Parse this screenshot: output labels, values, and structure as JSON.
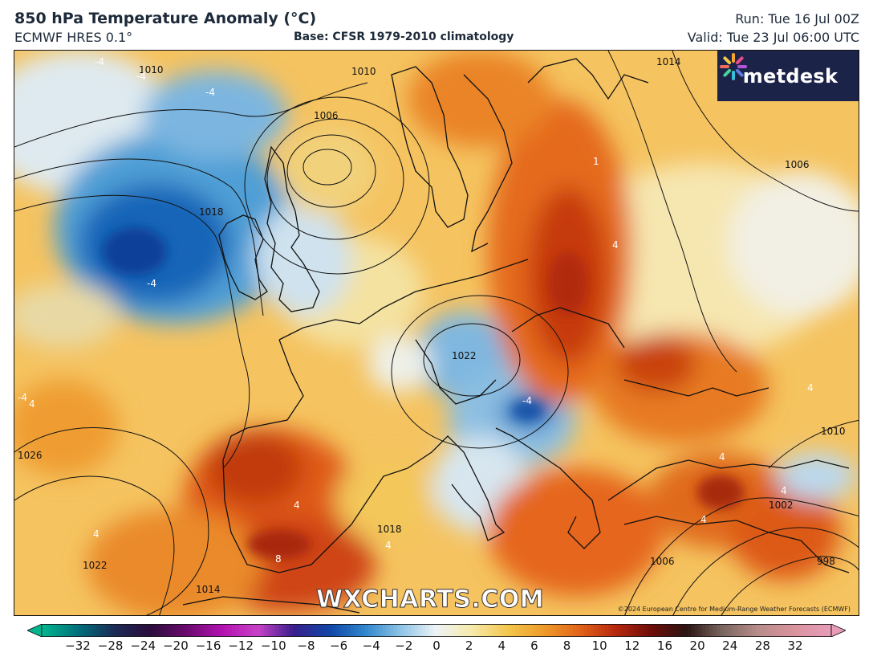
{
  "header": {
    "title": "850 hPa Temperature Anomaly (°C)",
    "model": "ECMWF HRES 0.1°",
    "base": "Base: CFSR 1979-2010 climatology",
    "run": "Run: Tue 16 Jul 00Z",
    "valid": "Valid: Tue 23 Jul 06:00 UTC"
  },
  "logo": {
    "text": "metdesk",
    "icon": "metdesk-flower-icon"
  },
  "watermark": "WXCHARTS.COM",
  "copyright": "©2024 European Centre for Medium-Range Weather Forecasts (ECMWF)",
  "isobar_labels": [
    "1010",
    "1006",
    "1014",
    "1006",
    "1018",
    "1022",
    "1026",
    "1022",
    "1014",
    "1018",
    "1010",
    "1006",
    "998",
    "1002",
    "1010"
  ],
  "anomaly_labels": [
    "-4",
    "-4",
    "-4",
    "-4",
    "-4",
    "4",
    "4",
    "4",
    "4",
    "-4",
    "4",
    "4",
    "4",
    "8",
    "4",
    "4",
    "1"
  ],
  "colorbar": {
    "ticks": [
      "−32",
      "−28",
      "−24",
      "−20",
      "−16",
      "−12",
      "−10",
      "−8",
      "−6",
      "−4",
      "−2",
      "0",
      "2",
      "4",
      "6",
      "8",
      "10",
      "12",
      "16",
      "20",
      "24",
      "28",
      "32"
    ],
    "colors": [
      "#00b38f",
      "#006d7a",
      "#1c2a55",
      "#2b0d3c",
      "#6b0a6e",
      "#b212b0",
      "#c842c8",
      "#3a1f8c",
      "#1046a8",
      "#2f86cc",
      "#8ec4e6",
      "#eef4f6",
      "#f7e9a8",
      "#f3c64c",
      "#ee9b2a",
      "#e2641a",
      "#b8280e",
      "#6e0e0a",
      "#2b1412",
      "#7a6660",
      "#b88c8a",
      "#d9939e",
      "#e79cb8"
    ]
  }
}
